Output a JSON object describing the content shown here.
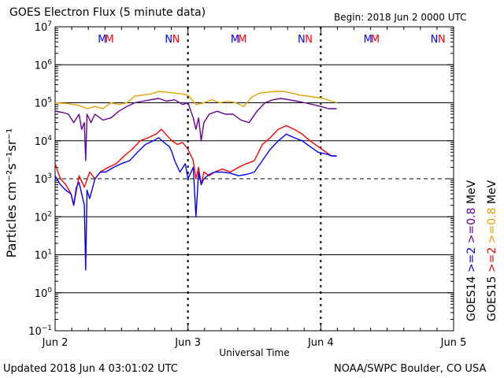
{
  "header": {
    "title": "GOES Electron Flux (5 minute data)",
    "begin": "Begin: 2018 Jun 2 0000 UTC"
  },
  "footer": {
    "updated": "Updated 2018 Jun  4 03:01:02 UTC",
    "source": "NOAA/SWPC Boulder, CO USA"
  },
  "colors": {
    "blue": "#0000ff",
    "red": "#ff0000",
    "purple": "#660099",
    "orange": "#e8a000"
  },
  "chart_data": {
    "type": "line",
    "title": "GOES Electron Flux (5 minute data)",
    "xlabel": "Universal Time",
    "ylabel": "Particles cm⁻²s⁻¹sr⁻¹",
    "yscale": "log",
    "ylim": [
      0.1,
      10000000
    ],
    "xlim": [
      0,
      3
    ],
    "x_unit": "days since 2018 Jun 2 0000 UTC",
    "x_ticks": [
      {
        "x": 0,
        "label": "Jun 2"
      },
      {
        "x": 1,
        "label": "Jun 3"
      },
      {
        "x": 2,
        "label": "Jun 4"
      },
      {
        "x": 3,
        "label": "Jun 5"
      }
    ],
    "y_ticks": [
      {
        "base": "10",
        "exp": "−1",
        "value": 0.1
      },
      {
        "base": "10",
        "exp": "0",
        "value": 1
      },
      {
        "base": "10",
        "exp": "1",
        "value": 10
      },
      {
        "base": "10",
        "exp": "2",
        "value": 100
      },
      {
        "base": "10",
        "exp": "3",
        "value": 1000
      },
      {
        "base": "10",
        "exp": "4",
        "value": 10000
      },
      {
        "base": "10",
        "exp": "5",
        "value": 100000
      },
      {
        "base": "10",
        "exp": "6",
        "value": 1000000
      },
      {
        "base": "10",
        "exp": "7",
        "value": 10000000
      }
    ],
    "gridlines_y": [
      1,
      10,
      100,
      10000,
      100000,
      1000000
    ],
    "threshold": {
      "value": 1000,
      "style": "dashed"
    },
    "day_dividers": [
      1,
      2
    ],
    "markers": [
      {
        "label": "M",
        "x": 0.355,
        "color": "#0000ff"
      },
      {
        "label": "M",
        "x": 0.41,
        "color": "#ff0000"
      },
      {
        "label": "N",
        "x": 0.855,
        "color": "#0000ff"
      },
      {
        "label": "N",
        "x": 0.91,
        "color": "#ff0000"
      },
      {
        "label": "M",
        "x": 1.355,
        "color": "#0000ff"
      },
      {
        "label": "M",
        "x": 1.41,
        "color": "#ff0000"
      },
      {
        "label": "N",
        "x": 1.855,
        "color": "#0000ff"
      },
      {
        "label": "N",
        "x": 1.91,
        "color": "#ff0000"
      },
      {
        "label": "M",
        "x": 2.355,
        "color": "#0000ff"
      },
      {
        "label": "M",
        "x": 2.41,
        "color": "#ff0000"
      },
      {
        "label": "N",
        "x": 2.855,
        "color": "#0000ff"
      },
      {
        "label": "N",
        "x": 2.91,
        "color": "#ff0000"
      }
    ],
    "right_labels": [
      {
        "text": "GOES14",
        "color": "#000000"
      },
      {
        "text": ">=2",
        "color": "#0000ff"
      },
      {
        "text": ">=0.8",
        "color": "#660099"
      },
      {
        "text": "MeV",
        "color": "#000000"
      },
      {
        "text": "GOES15",
        "color": "#000000"
      },
      {
        "text": ">=2",
        "color": "#ff0000"
      },
      {
        "text": ">=0.8",
        "color": "#e8a000"
      },
      {
        "text": "MeV",
        "color": "#000000"
      }
    ],
    "series": [
      {
        "name": "GOES15 >=0.8 MeV",
        "color": "#e8a000",
        "x": [
          0,
          0.1,
          0.18,
          0.24,
          0.3,
          0.36,
          0.42,
          0.48,
          0.54,
          0.6,
          0.66,
          0.72,
          0.78,
          0.84,
          0.9,
          0.96,
          1.0,
          1.06,
          1.12,
          1.18,
          1.24,
          1.3,
          1.36,
          1.42,
          1.48,
          1.54,
          1.6,
          1.66,
          1.72,
          1.78,
          1.84,
          1.9,
          1.96,
          2.02,
          2.08,
          2.12
        ],
        "values": [
          100000,
          95000,
          85000,
          70000,
          80000,
          70000,
          100000,
          90000,
          100000,
          150000,
          160000,
          170000,
          200000,
          190000,
          180000,
          170000,
          160000,
          90000,
          100000,
          120000,
          100000,
          110000,
          100000,
          80000,
          140000,
          180000,
          190000,
          200000,
          200000,
          180000,
          160000,
          150000,
          140000,
          130000,
          110000,
          100000
        ]
      },
      {
        "name": "GOES14 >=0.8 MeV",
        "color": "#660099",
        "x": [
          0,
          0.06,
          0.1,
          0.14,
          0.18,
          0.2,
          0.22,
          0.23,
          0.24,
          0.27,
          0.3,
          0.36,
          0.42,
          0.48,
          0.54,
          0.6,
          0.66,
          0.72,
          0.78,
          0.84,
          0.9,
          0.96,
          1.0,
          1.04,
          1.06,
          1.08,
          1.1,
          1.12,
          1.16,
          1.22,
          1.28,
          1.34,
          1.4,
          1.46,
          1.52,
          1.58,
          1.64,
          1.7,
          1.76,
          1.82,
          1.88,
          1.94,
          2.0,
          2.06,
          2.12
        ],
        "values": [
          60000,
          55000,
          50000,
          30000,
          50000,
          20000,
          30000,
          3000,
          50000,
          30000,
          50000,
          35000,
          40000,
          60000,
          80000,
          100000,
          110000,
          120000,
          130000,
          110000,
          120000,
          90000,
          100000,
          40000,
          20000,
          40000,
          10000,
          30000,
          50000,
          60000,
          50000,
          50000,
          35000,
          30000,
          60000,
          100000,
          120000,
          130000,
          120000,
          110000,
          100000,
          90000,
          80000,
          70000,
          70000
        ]
      },
      {
        "name": "GOES15 >=2 MeV",
        "color": "#ff0000",
        "x": [
          0,
          0.04,
          0.08,
          0.12,
          0.14,
          0.18,
          0.22,
          0.26,
          0.3,
          0.34,
          0.4,
          0.46,
          0.52,
          0.58,
          0.64,
          0.7,
          0.76,
          0.8,
          0.84,
          0.88,
          0.92,
          0.96,
          1.0,
          1.04,
          1.06,
          1.08,
          1.1,
          1.12,
          1.16,
          1.2,
          1.26,
          1.32,
          1.38,
          1.44,
          1.5,
          1.56,
          1.62,
          1.68,
          1.74,
          1.8,
          1.86,
          1.92,
          1.98,
          2.04,
          2.08,
          2.12
        ],
        "values": [
          2500,
          1000,
          700,
          400,
          200,
          1200,
          600,
          1500,
          1000,
          1500,
          2000,
          2500,
          4000,
          6000,
          10000,
          12000,
          15000,
          20000,
          14000,
          10000,
          8000,
          9000,
          6000,
          3000,
          1000,
          2000,
          700,
          1500,
          1200,
          1500,
          1800,
          1500,
          2000,
          2500,
          3000,
          8000,
          12000,
          20000,
          25000,
          20000,
          15000,
          10000,
          7000,
          5000,
          4000,
          4000
        ]
      },
      {
        "name": "GOES14 >=2 MeV",
        "color": "#0000ff",
        "x": [
          0,
          0.04,
          0.08,
          0.12,
          0.14,
          0.16,
          0.18,
          0.2,
          0.22,
          0.23,
          0.24,
          0.26,
          0.3,
          0.34,
          0.38,
          0.44,
          0.5,
          0.56,
          0.62,
          0.68,
          0.74,
          0.78,
          0.82,
          0.86,
          0.88,
          0.9,
          0.94,
          0.98,
          1.0,
          1.04,
          1.06,
          1.08,
          1.1,
          1.12,
          1.16,
          1.2,
          1.26,
          1.32,
          1.38,
          1.44,
          1.5,
          1.56,
          1.62,
          1.68,
          1.74,
          1.8,
          1.86,
          1.92,
          1.98,
          2.04,
          2.08,
          2.12
        ],
        "values": [
          1200,
          700,
          500,
          400,
          200,
          600,
          800,
          400,
          200,
          4,
          500,
          300,
          1000,
          1500,
          1500,
          2000,
          2500,
          3000,
          5000,
          8000,
          10000,
          12000,
          9000,
          7000,
          5000,
          3000,
          1500,
          2500,
          1000,
          2000,
          100,
          1500,
          700,
          1000,
          1300,
          1500,
          1500,
          1400,
          1200,
          1300,
          1500,
          3000,
          6000,
          10000,
          15000,
          12000,
          10000,
          7000,
          5000,
          4500,
          4000,
          4000
        ]
      }
    ]
  }
}
